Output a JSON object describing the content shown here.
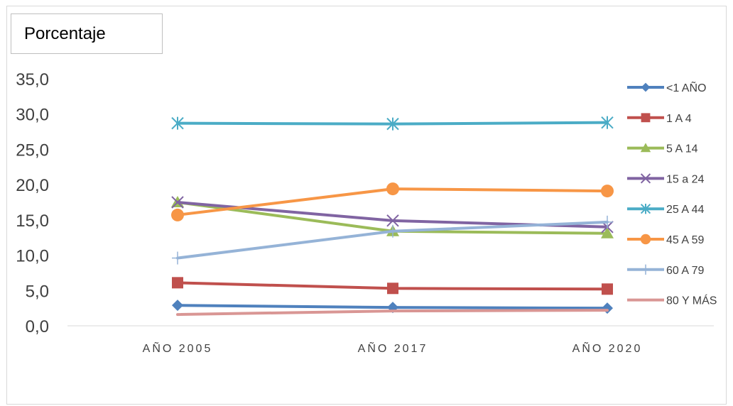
{
  "title": "Porcentaje",
  "chart_data": {
    "type": "line",
    "title": "Porcentaje",
    "categories": [
      "AÑO 2005",
      "AÑO 2017",
      "AÑO 2020"
    ],
    "ylim": [
      0,
      35
    ],
    "yticks": [
      "0,0",
      "5,0",
      "10,0",
      "15,0",
      "20,0",
      "25,0",
      "30,0",
      "35,0"
    ],
    "grid": false,
    "legend_position": "right",
    "series": [
      {
        "name": "<1 AÑO",
        "values": [
          2.9,
          2.6,
          2.5
        ],
        "color": "#4f81bd",
        "marker": "diamond"
      },
      {
        "name": "1 A 4",
        "values": [
          6.1,
          5.3,
          5.2
        ],
        "color": "#c0504d",
        "marker": "square"
      },
      {
        "name": "5 A 14",
        "values": [
          17.5,
          13.4,
          13.1
        ],
        "color": "#9bbb59",
        "marker": "triangle"
      },
      {
        "name": "15 a 24",
        "values": [
          17.5,
          14.9,
          14.0
        ],
        "color": "#8064a2",
        "marker": "x"
      },
      {
        "name": "25 A 44",
        "values": [
          28.7,
          28.6,
          28.8
        ],
        "color": "#4bacc6",
        "marker": "star"
      },
      {
        "name": "45 A 59",
        "values": [
          15.7,
          19.4,
          19.1
        ],
        "color": "#f79646",
        "marker": "circle"
      },
      {
        "name": "60 A 79",
        "values": [
          9.6,
          13.4,
          14.7
        ],
        "color": "#95b3d7",
        "marker": "plus"
      },
      {
        "name": "80 Y MÁS",
        "values": [
          1.6,
          2.1,
          2.2
        ],
        "color": "#d99694",
        "marker": "none"
      }
    ]
  }
}
